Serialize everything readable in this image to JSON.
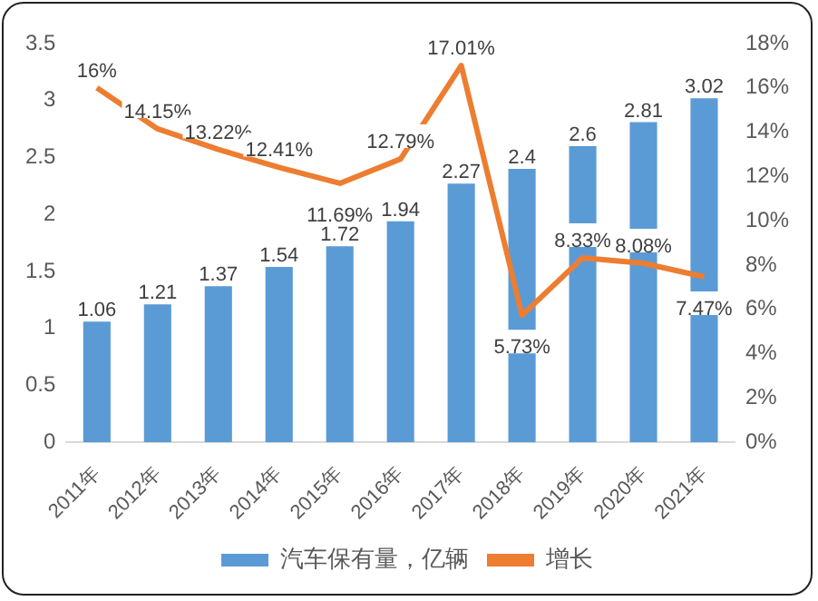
{
  "chart_data": {
    "type": "bar",
    "categories": [
      "2011年",
      "2012年",
      "2013年",
      "2014年",
      "2015年",
      "2016年",
      "2017年",
      "2018年",
      "2019年",
      "2020年",
      "2021年"
    ],
    "series": [
      {
        "name": "汽车保有量，亿辆",
        "color": "#5b9bd5",
        "values": [
          1.06,
          1.21,
          1.37,
          1.54,
          1.72,
          1.94,
          2.27,
          2.4,
          2.6,
          2.81,
          3.02
        ],
        "value_labels": [
          "1.06",
          "1.21",
          "1.37",
          "1.54",
          "1.72",
          "1.94",
          "2.27",
          "2.4",
          "2.6",
          "2.81",
          "3.02"
        ]
      },
      {
        "name": "增长",
        "type": "line",
        "axis": "y2",
        "color": "#ed7d31",
        "values": [
          16,
          14.15,
          13.22,
          12.41,
          11.69,
          12.79,
          17.01,
          5.73,
          8.33,
          8.08,
          7.47
        ],
        "value_labels": [
          "16%",
          "14.15%",
          "13.22%",
          "12.41%",
          "11.69%",
          "12.79%",
          "17.01%",
          "5.73%",
          "8.33%",
          "8.08%",
          "7.47%"
        ]
      }
    ],
    "ylim": [
      0,
      3.5
    ],
    "yticks": [
      0,
      0.5,
      1,
      1.5,
      2,
      2.5,
      3,
      3.5
    ],
    "y2lim": [
      0,
      18
    ],
    "y2ticks": [
      {
        "value": 0,
        "label": "0%"
      },
      {
        "value": 2,
        "label": "2%"
      },
      {
        "value": 4,
        "label": "4%"
      },
      {
        "value": 6,
        "label": "6%"
      },
      {
        "value": 8,
        "label": "8%"
      },
      {
        "value": 10,
        "label": "10%"
      },
      {
        "value": 12,
        "label": "12%"
      },
      {
        "value": 14,
        "label": "14%"
      },
      {
        "value": 16,
        "label": "16%"
      },
      {
        "value": 18,
        "label": "18%"
      }
    ],
    "grid": false,
    "legend": "bottom",
    "marker": "none",
    "line_style": "solid"
  }
}
